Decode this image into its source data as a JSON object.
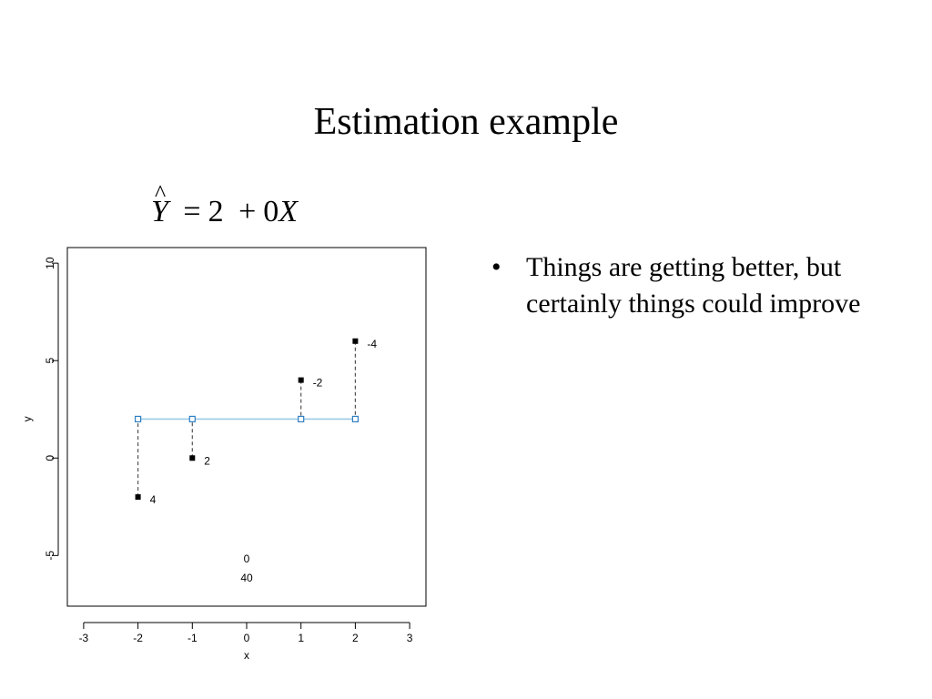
{
  "slide": {
    "title": "Estimation example",
    "equation": {
      "lhs": "Y",
      "equals": "=",
      "intercept": "2",
      "plus": "+",
      "slope": "0",
      "x_var": "X"
    },
    "bullets": [
      {
        "marker": "•",
        "text": "Things are getting better, but certainly things could improve"
      }
    ]
  },
  "chart_data": {
    "type": "scatter",
    "xlabel": "x",
    "ylabel": "y",
    "xlim": [
      -3.3,
      3.3
    ],
    "ylim": [
      -7.6,
      10.8
    ],
    "xticks": [
      -3,
      -2,
      -1,
      0,
      1,
      2,
      3
    ],
    "yticks": [
      -5,
      0,
      5,
      10
    ],
    "grid": false,
    "observed": {
      "x": [
        -2,
        -1,
        1,
        2
      ],
      "y": [
        -2,
        0,
        4,
        6
      ]
    },
    "fitted_line": {
      "intercept": 2,
      "slope": 0,
      "x": [
        -2,
        -1,
        1,
        2
      ],
      "y": [
        2,
        2,
        2,
        2
      ]
    },
    "residual_labels": [
      "4",
      "2",
      "-2",
      "-4"
    ],
    "annotations": [
      {
        "text": "0",
        "x": 0,
        "y": -5.2
      },
      {
        "text": "40",
        "x": 0,
        "y": -6.2
      }
    ],
    "colors": {
      "line": "#9ccbe4",
      "fitted_marker": "#2f7fc1",
      "observed_marker": "#000000",
      "residual": "#555555"
    }
  }
}
